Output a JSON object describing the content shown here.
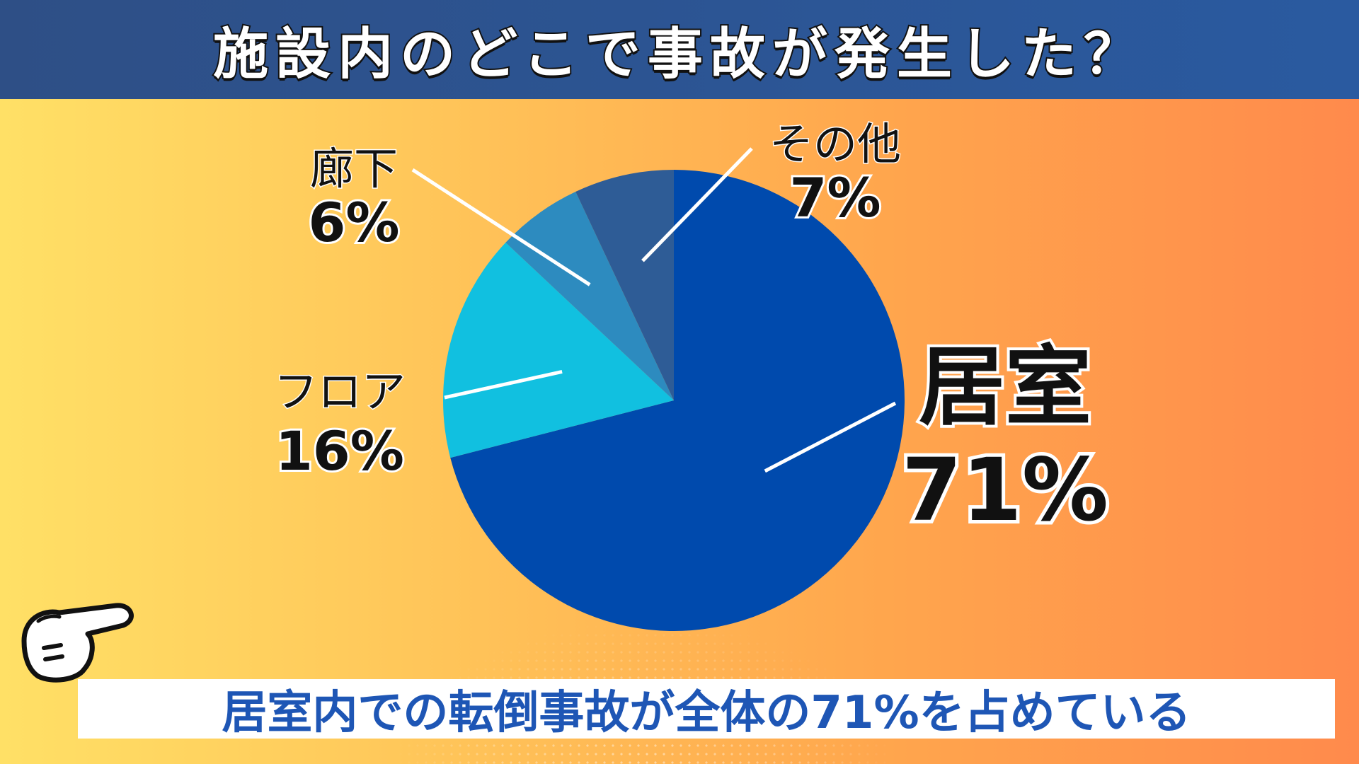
{
  "title": "施設内のどこで事故が発生した？",
  "chart_data": {
    "type": "pie",
    "start": "top",
    "direction": "clockwise",
    "slices": [
      {
        "label": "居室",
        "value": 71,
        "value_label": "71%",
        "color": "#004aad"
      },
      {
        "label": "フロア",
        "value": 16,
        "value_label": "16%",
        "color": "#11c0e0"
      },
      {
        "label": "廊下",
        "value": 6,
        "value_label": "6%",
        "color": "#2d8bbf"
      },
      {
        "label": "その他",
        "value": 7,
        "value_label": "7%",
        "color": "#2e5c96"
      }
    ]
  },
  "annotation": {
    "text": "居室内での転倒事故が全体の71%を占めている",
    "icon": "pointing-hand-icon"
  }
}
